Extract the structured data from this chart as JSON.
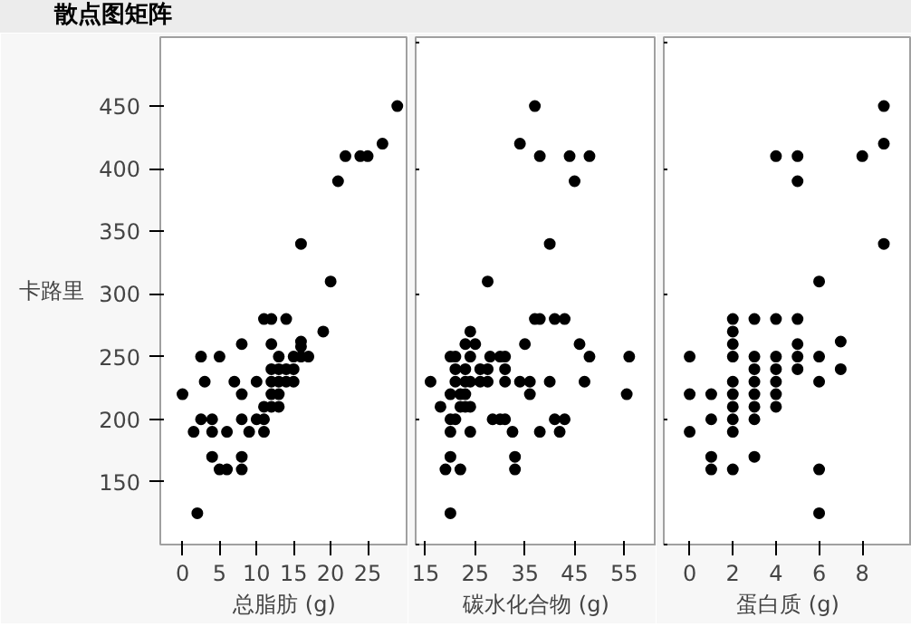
{
  "chart_data": [
    {
      "type": "scatter",
      "title": "散点图矩阵",
      "xlabel": "总脂肪 (g)",
      "ylabel": "卡路里",
      "marker": "circle",
      "grid": false,
      "xlim": [
        -3,
        30.5
      ],
      "ylim": [
        100,
        505
      ],
      "xticks": [
        0,
        5,
        10,
        15,
        20,
        25
      ],
      "yticks": [
        150,
        200,
        250,
        300,
        350,
        400,
        450
      ],
      "series": [
        {
          "color": "#000000",
          "x": [
            0,
            1.5,
            2.5,
            2.5,
            3,
            2,
            4,
            4,
            4,
            5,
            5,
            6,
            6,
            7,
            8,
            8,
            8,
            8,
            8,
            9,
            10,
            10,
            11,
            12,
            11,
            11,
            11,
            12,
            12,
            12,
            12,
            12,
            13,
            13,
            13,
            13,
            13,
            14,
            14,
            14,
            15,
            15,
            15,
            16,
            16,
            16,
            16,
            17,
            19,
            20,
            21,
            22,
            24,
            25,
            27,
            29
          ],
          "values": [
            220,
            190,
            250,
            200,
            230,
            125,
            200,
            190,
            170,
            250,
            160,
            160,
            190,
            230,
            260,
            220,
            200,
            170,
            160,
            190,
            230,
            200,
            280,
            280,
            210,
            200,
            190,
            260,
            240,
            230,
            220,
            210,
            250,
            240,
            230,
            220,
            210,
            280,
            240,
            230,
            250,
            240,
            230,
            340,
            262,
            258,
            250,
            250,
            270,
            310,
            390,
            410,
            410,
            410,
            420,
            450
          ]
        }
      ]
    },
    {
      "type": "scatter",
      "xlabel": "碳水化合物 (g)",
      "marker": "circle",
      "grid": false,
      "tick_labels": "x",
      "xlim": [
        13,
        61.5
      ],
      "ylim": [
        100,
        505
      ],
      "xticks": [
        15,
        25,
        35,
        45,
        55
      ],
      "series": [
        {
          "color": "#000000",
          "x": [
            37,
            34,
            38,
            44,
            48,
            45,
            40,
            27.5,
            37,
            38,
            41,
            43,
            24,
            23,
            25,
            35,
            46,
            20,
            21,
            24,
            28,
            30,
            31,
            48,
            56,
            21,
            23,
            26,
            27.5,
            31,
            16,
            21,
            23,
            24,
            26,
            27.5,
            31,
            34,
            36,
            40,
            47,
            20,
            22,
            23,
            36,
            55.5,
            18,
            22,
            23,
            24,
            20,
            21,
            28.5,
            30,
            31,
            41,
            43,
            20,
            24,
            32.5,
            38,
            42,
            20,
            33,
            19,
            22,
            33,
            20
          ],
          "values": [
            450,
            420,
            410,
            410,
            410,
            390,
            340,
            310,
            280,
            280,
            280,
            280,
            270,
            260,
            260,
            260,
            260,
            250,
            250,
            250,
            250,
            250,
            250,
            250,
            250,
            240,
            240,
            240,
            240,
            240,
            230,
            230,
            230,
            230,
            230,
            230,
            230,
            230,
            230,
            230,
            230,
            220,
            220,
            220,
            220,
            220,
            210,
            210,
            210,
            210,
            200,
            200,
            200,
            200,
            200,
            200,
            200,
            190,
            190,
            190,
            190,
            190,
            170,
            170,
            160,
            160,
            160,
            125
          ]
        }
      ]
    },
    {
      "type": "scatter",
      "xlabel": "蛋白质 (g)",
      "marker": "circle",
      "grid": false,
      "tick_labels": "x",
      "xlim": [
        -1.2,
        10.3
      ],
      "ylim": [
        100,
        505
      ],
      "xticks": [
        0,
        2,
        4,
        6,
        8
      ],
      "series": [
        {
          "color": "#000000",
          "x": [
            9,
            9,
            4,
            5,
            8,
            5,
            9,
            6,
            2,
            3,
            4,
            5,
            2,
            2,
            5,
            7,
            0,
            2,
            3,
            4,
            5,
            6,
            3,
            4,
            5,
            7,
            2,
            3,
            4,
            6,
            0,
            1,
            2,
            3,
            4,
            2,
            3,
            4,
            1,
            2,
            3,
            0,
            2,
            1,
            3,
            1,
            2,
            6,
            6
          ],
          "values": [
            450,
            420,
            410,
            410,
            410,
            390,
            340,
            310,
            280,
            280,
            280,
            280,
            270,
            260,
            260,
            262,
            250,
            250,
            250,
            250,
            250,
            250,
            240,
            240,
            240,
            240,
            230,
            230,
            230,
            230,
            220,
            220,
            220,
            220,
            220,
            210,
            210,
            210,
            200,
            200,
            200,
            190,
            190,
            170,
            170,
            160,
            160,
            160,
            125
          ]
        }
      ]
    }
  ]
}
